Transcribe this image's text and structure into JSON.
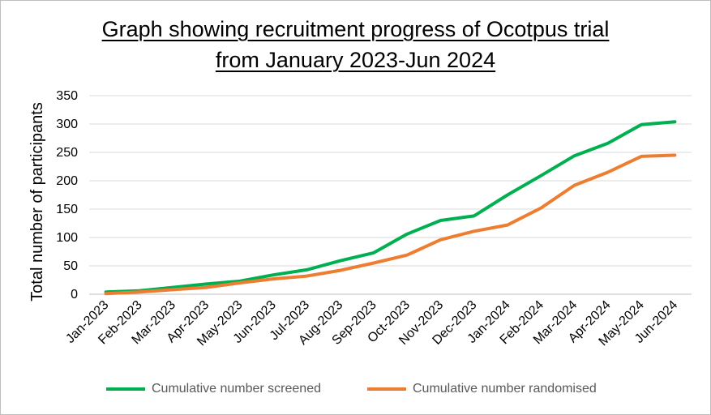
{
  "chart_data": {
    "type": "line",
    "title_lines": [
      "Graph showing recruitment progress of Ocotpus trial",
      "from January 2023-Jun 2024"
    ],
    "ylabel": "Total number of participants",
    "xlabel": "",
    "categories": [
      "Jan-2023",
      "Feb-2023",
      "Mar-2023",
      "Apr-2023",
      "May-2023",
      "Jun-2023",
      "Jul-2023",
      "Aug-2023",
      "Sep-2023",
      "Oct-2023",
      "Nov-2023",
      "Dec-2023",
      "Jan-2024",
      "Feb-2024",
      "Mar-2024",
      "Apr-2024",
      "May-2024",
      "Jun-2024"
    ],
    "ylim": [
      0,
      350
    ],
    "yticks": [
      "0",
      "50",
      "100",
      "150",
      "200",
      "250",
      "300",
      "350"
    ],
    "grid": true,
    "legend_position": "bottom",
    "series": [
      {
        "name": "Cumulative number screened",
        "color": "#00b050",
        "values": [
          4,
          6,
          12,
          18,
          23,
          34,
          43,
          59,
          73,
          106,
          130,
          138,
          175,
          209,
          244,
          266,
          299,
          304
        ]
      },
      {
        "name": "Cumulative number randomised",
        "color": "#ed7d31",
        "values": [
          1,
          4,
          8,
          12,
          20,
          27,
          32,
          42,
          55,
          69,
          96,
          111,
          122,
          152,
          192,
          215,
          243,
          245
        ]
      }
    ]
  }
}
